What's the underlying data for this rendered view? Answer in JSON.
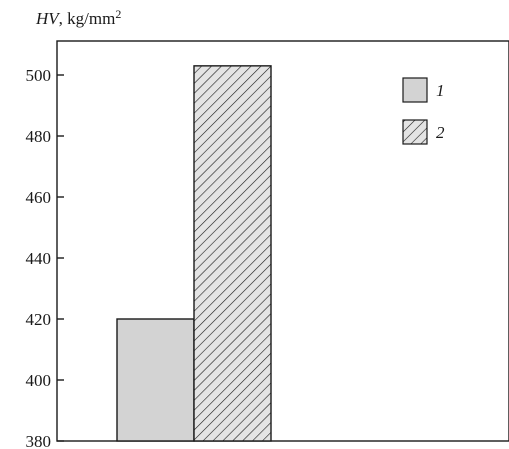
{
  "chart_data": {
    "type": "bar",
    "ylabel": {
      "quantity": "HV",
      "unit": ", kg/mm",
      "exponent": "2"
    },
    "ylim": [
      380,
      505
    ],
    "yticks": [
      380,
      400,
      420,
      440,
      460,
      480,
      500
    ],
    "grid": false,
    "legend_position": "top-right",
    "series": [
      {
        "name": "1",
        "value": 420,
        "color": "#d3d3d3",
        "pattern": "solid"
      },
      {
        "name": "2",
        "value": 503,
        "color": "#e4e4e4",
        "pattern": "hatched"
      }
    ]
  }
}
